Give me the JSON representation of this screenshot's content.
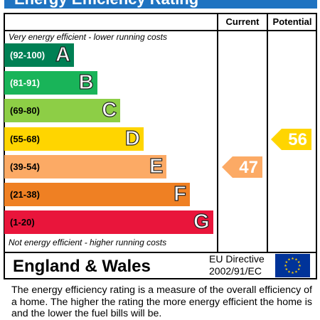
{
  "title": "Energy Efficiency Rating",
  "columns": {
    "current": "Current",
    "potential": "Potential"
  },
  "captions": {
    "top": "Very energy efficient - lower running costs",
    "bottom": "Not energy efficient - higher running costs"
  },
  "footer": {
    "country": "England & Wales",
    "directive_line1": "EU Directive",
    "directive_line2": "2002/91/EC",
    "flag_icon": "eu-flag-icon"
  },
  "explanation": "The energy efficiency rating is a measure of the overall efficiency of a home.  The higher the rating the more energy efficient the home is and the lower the fuel bills will be.",
  "chart_data": {
    "type": "bar",
    "title": "Energy Efficiency Rating",
    "bands": [
      {
        "letter": "A",
        "range": "(92-100)",
        "color": "#008054",
        "range_color": "#ffffff"
      },
      {
        "letter": "B",
        "range": "(81-91)",
        "color": "#19b459",
        "range_color": "#ffffff"
      },
      {
        "letter": "C",
        "range": "(69-80)",
        "color": "#8dce46",
        "range_color": "#000000"
      },
      {
        "letter": "D",
        "range": "(55-68)",
        "color": "#ffd500",
        "range_color": "#000000"
      },
      {
        "letter": "E",
        "range": "(39-54)",
        "color": "#fcaa65",
        "range_color": "#000000"
      },
      {
        "letter": "F",
        "range": "(21-38)",
        "color": "#ef8023",
        "range_color": "#000000"
      },
      {
        "letter": "G",
        "range": "(1-20)",
        "color": "#e9153b",
        "range_color": "#000000"
      }
    ],
    "current": {
      "value": 47,
      "band": "E",
      "color": "#fcaa65"
    },
    "potential": {
      "value": 56,
      "band": "D",
      "color": "#ffd500"
    }
  }
}
